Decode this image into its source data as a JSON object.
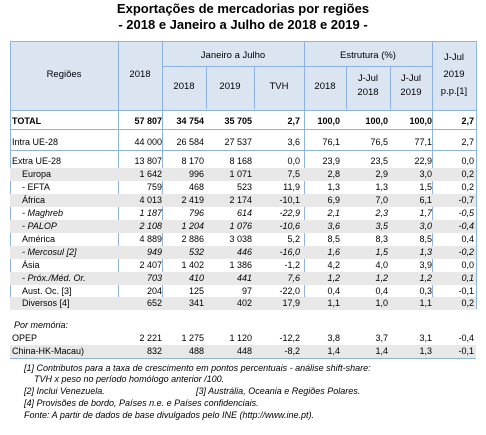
{
  "title": "Exportações de mercadorias por regiões",
  "subtitle": "- 2018 e Janeiro a Julho de 2018 e 2019 -",
  "header": {
    "regioes": "Regiões",
    "y2018": "2018",
    "jan_jul": "Janeiro a Julho",
    "jj2018": "2018",
    "jj2019": "2019",
    "tvh": "TVH",
    "estrutura": "Estrutura (%)",
    "e2018": "2018",
    "ejjul18_a": "J-Jul",
    "ejjul18_b": "2018",
    "ejjul19_a": "J-Jul",
    "ejjul19_b": "2019",
    "jjul_a": "J-Jul",
    "jjul_b": "2019",
    "jjul_c": "p.p.[1]"
  },
  "rows": [
    {
      "label": "TOTAL",
      "v": [
        "57 807",
        "34 754",
        "35 705",
        "2,7",
        "100,0",
        "100,0",
        "100,0",
        "2,7"
      ]
    },
    {
      "label": "Intra UE-28",
      "v": [
        "44 000",
        "26 584",
        "27 537",
        "3,6",
        "76,1",
        "76,5",
        "77,1",
        "2,7"
      ]
    },
    {
      "label": "Extra UE-28",
      "v": [
        "13 807",
        "8 170",
        "8 168",
        "0,0",
        "23,9",
        "23,5",
        "22,9",
        "0,0"
      ]
    },
    {
      "label": "Europa",
      "v": [
        "1 642",
        "996",
        "1 071",
        "7,5",
        "2,8",
        "2,9",
        "3,0",
        "0,2"
      ]
    },
    {
      "label": "- EFTA",
      "v": [
        "759",
        "468",
        "523",
        "11,9",
        "1,3",
        "1,3",
        "1,5",
        "0,2"
      ]
    },
    {
      "label": "África",
      "v": [
        "4 013",
        "2 419",
        "2 174",
        "-10,1",
        "6,9",
        "7,0",
        "6,1",
        "-0,7"
      ]
    },
    {
      "label": "- Maghreb",
      "v": [
        "1 187",
        "796",
        "614",
        "-22,9",
        "2,1",
        "2,3",
        "1,7",
        "-0,5"
      ]
    },
    {
      "label": "- PALOP",
      "v": [
        "2 108",
        "1 204",
        "1 076",
        "-10,6",
        "3,6",
        "3,5",
        "3,0",
        "-0,4"
      ]
    },
    {
      "label": "América",
      "v": [
        "4 889",
        "2 886",
        "3 038",
        "5,2",
        "8,5",
        "8,3",
        "8,5",
        "0,4"
      ]
    },
    {
      "label": "- Mercosul [2]",
      "v": [
        "949",
        "532",
        "446",
        "-16,0",
        "1,6",
        "1,5",
        "1,3",
        "-0,2"
      ]
    },
    {
      "label": "Ásia",
      "v": [
        "2 407",
        "1 402",
        "1 386",
        "-1,2",
        "4,2",
        "4,0",
        "3,9",
        "0,0"
      ]
    },
    {
      "label": "- Próx./Méd. Or.",
      "v": [
        "703",
        "410",
        "441",
        "7,6",
        "1,2",
        "1,2",
        "1,2",
        "0,1"
      ]
    },
    {
      "label": "Aust. Oc. [3]",
      "v": [
        "204",
        "125",
        "97",
        "-22,0",
        "0,4",
        "0,4",
        "0,3",
        "-0,1"
      ]
    },
    {
      "label": "Diversos [4]",
      "v": [
        "652",
        "341",
        "402",
        "17,9",
        "1,1",
        "1,0",
        "1,1",
        "0,2"
      ]
    }
  ],
  "memo_label": "Por memória:",
  "memo_rows": [
    {
      "label": "OPEP",
      "v": [
        "2 221",
        "1 275",
        "1 120",
        "-12,2",
        "3,8",
        "3,7",
        "3,1",
        "-0,4"
      ]
    },
    {
      "label": "China-HK-Macau)",
      "v": [
        "832",
        "488",
        "448",
        "-8,2",
        "1,4",
        "1,4",
        "1,3",
        "-0,1"
      ]
    }
  ],
  "footnotes": {
    "f1a": "[1] Contributos para a taxa de crescimento em pontos percentuais - análise shift-share:",
    "f1b": "TVH x peso no período homólogo anterior /100.",
    "f2": "[2] Inclui Venezuela.",
    "f3": "[3] Austrália, Oceania e Regiões Polares.",
    "f4": "[4] Provisões de bordo, Países n.e. e Países confidenciais.",
    "fonte": "Fonte: A partir de dados de base divulgados pelo INE (http://www.ine.pt)."
  },
  "colors": {
    "header_bg": "#dbe5f1",
    "border": "#8db3e2",
    "shade": "#e8e8e8"
  }
}
